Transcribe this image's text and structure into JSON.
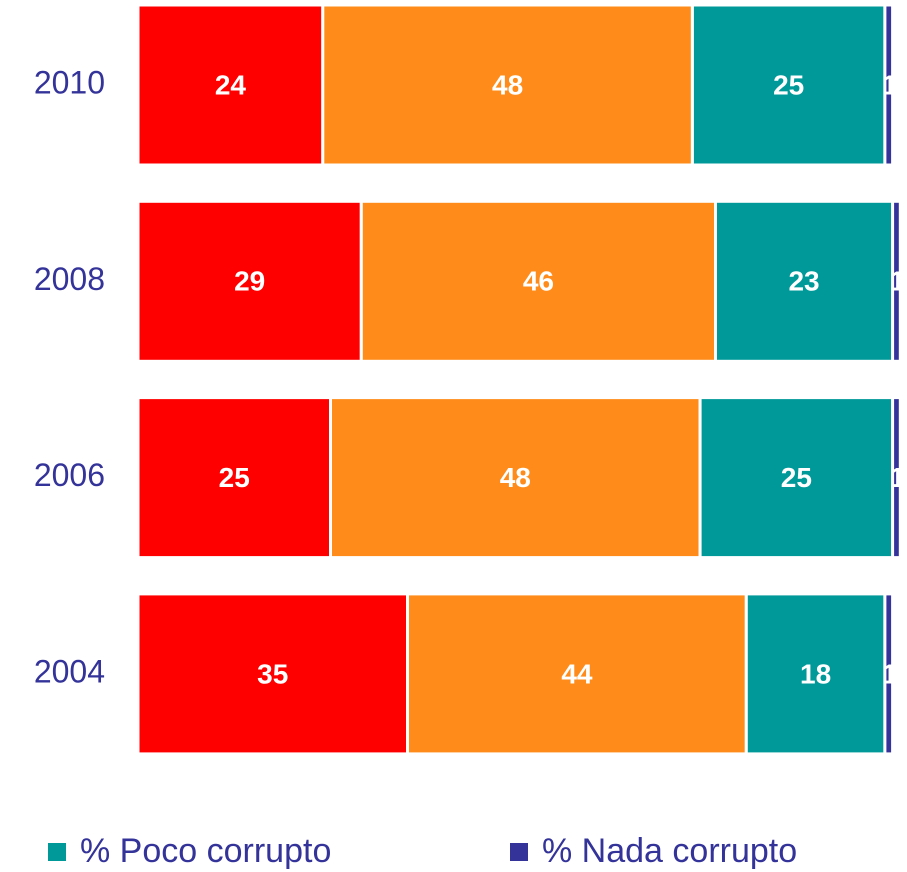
{
  "chart_data": {
    "type": "stacked-bar-horizontal",
    "categories": [
      "2010",
      "2008",
      "2006",
      "2004"
    ],
    "series": [
      {
        "color": "#ff0000",
        "values": [
          24,
          29,
          25,
          35
        ]
      },
      {
        "color": "#ff8c1a",
        "values": [
          48,
          46,
          48,
          44
        ]
      },
      {
        "name": "% Poco corrupto",
        "color": "#009999",
        "values": [
          25,
          23,
          25,
          18
        ]
      },
      {
        "name": "% Nada corrupto",
        "color": "#333399",
        "values": [
          1,
          1,
          1,
          1
        ]
      }
    ],
    "xlim": [
      0,
      100
    ]
  }
}
